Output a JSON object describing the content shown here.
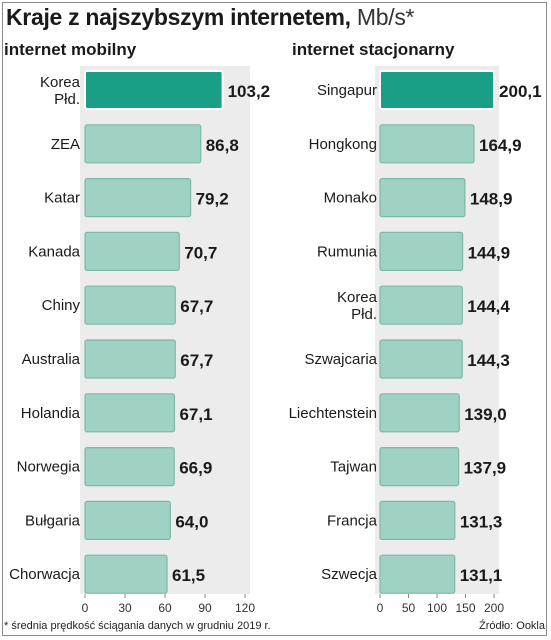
{
  "title": "Kraje z najszybszym internetem,",
  "unit": "Mb/s*",
  "footnote": "* średnia prędkość ściągania danych w grudniu 2019 r.",
  "source": "Źródło: Ookla",
  "colors": {
    "bar": "#9fd1c4",
    "bar_border": "#7fb8a9",
    "highlight": "#1a9e86",
    "panel": "#ececec"
  },
  "chart_data": [
    {
      "type": "bar",
      "orientation": "horizontal",
      "title": "internet mobilny",
      "categories": [
        "Korea\nPłd.",
        "ZEA",
        "Katar",
        "Kanada",
        "Chiny",
        "Australia",
        "Holandia",
        "Norwegia",
        "Bułgaria",
        "Chorwacja"
      ],
      "values": [
        103.2,
        86.8,
        79.2,
        70.7,
        67.7,
        67.7,
        67.1,
        66.9,
        64.0,
        61.5
      ],
      "value_labels": [
        "103,2",
        "86,8",
        "79,2",
        "70,7",
        "67,7",
        "67,7",
        "67,1",
        "66,9",
        "64,0",
        "61,5"
      ],
      "xlim": [
        0,
        120
      ],
      "ticks": [
        0,
        30,
        60,
        90,
        120
      ],
      "highlight_index": 0
    },
    {
      "type": "bar",
      "orientation": "horizontal",
      "title": "internet stacjonarny",
      "categories": [
        "Singapur",
        "Hongkong",
        "Monako",
        "Rumunia",
        "Korea\nPłd.",
        "Szwajcaria",
        "Liechtenstein",
        "Tajwan",
        "Francja",
        "Szwecja"
      ],
      "values": [
        200.1,
        164.9,
        148.9,
        144.9,
        144.4,
        144.3,
        139.0,
        137.9,
        131.3,
        131.1
      ],
      "value_labels": [
        "200,1",
        "164,9",
        "148,9",
        "144,9",
        "144,4",
        "144,3",
        "139,0",
        "137,9",
        "131,3",
        "131,1"
      ],
      "xlim": [
        0,
        200
      ],
      "ticks": [
        0,
        50,
        100,
        150,
        200
      ],
      "highlight_index": 0
    }
  ]
}
